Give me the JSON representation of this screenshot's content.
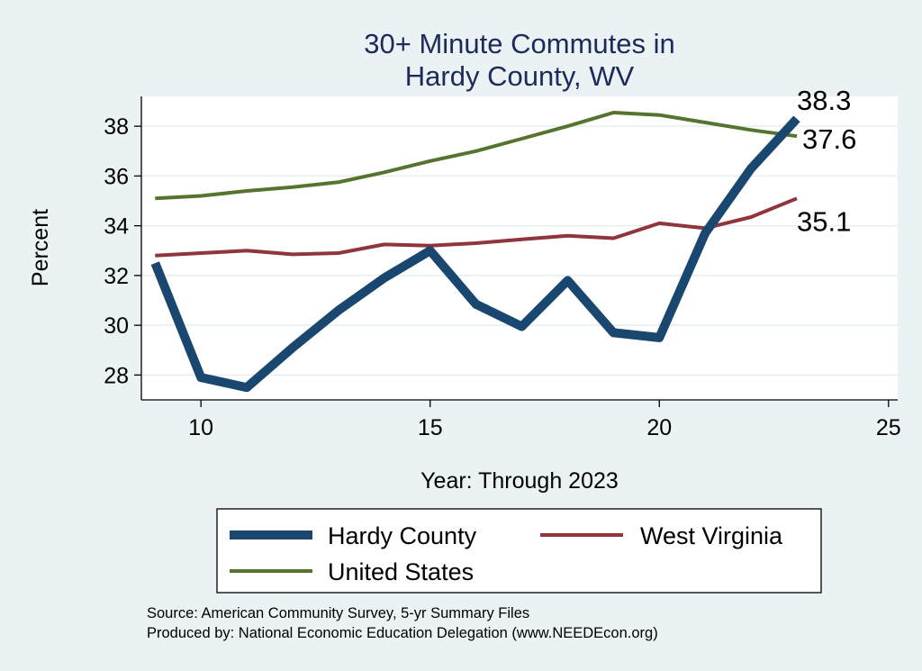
{
  "colors": {
    "background": "#eaf2f3",
    "plot_background": "#ffffff",
    "gridline": "#e6eef0",
    "title": "#1c2b5a"
  },
  "chart_data": {
    "type": "line",
    "title_lines": [
      "30+ Minute Commutes in",
      "Hardy County, WV"
    ],
    "xlabel": "Year: Through 2023",
    "ylabel": "Percent",
    "xlim": [
      8.7,
      25.2
    ],
    "ylim": [
      27.0,
      39.2
    ],
    "x_ticks": [
      10,
      15,
      20,
      25
    ],
    "x_tick_labels": [
      "10",
      "15",
      "20",
      "25"
    ],
    "y_ticks": [
      28,
      30,
      32,
      34,
      36,
      38
    ],
    "y_tick_labels": [
      "28",
      "30",
      "32",
      "34",
      "36",
      "38"
    ],
    "grid": true,
    "x": [
      9,
      10,
      11,
      12,
      13,
      14,
      15,
      16,
      17,
      18,
      19,
      20,
      21,
      22,
      23
    ],
    "series": [
      {
        "name": "Hardy County",
        "color": "#1a476f",
        "width": 10,
        "values": [
          32.5,
          27.9,
          27.5,
          29.1,
          30.6,
          31.9,
          33.0,
          30.85,
          29.95,
          31.8,
          29.7,
          29.5,
          33.7,
          36.3,
          38.3
        ],
        "end_label": "38.3"
      },
      {
        "name": "West Virginia",
        "color": "#90353b",
        "width": 4,
        "values": [
          32.8,
          32.9,
          33.0,
          32.85,
          32.9,
          33.25,
          33.2,
          33.3,
          33.45,
          33.6,
          33.5,
          34.1,
          33.9,
          34.35,
          35.1
        ],
        "end_label": "35.1"
      },
      {
        "name": "United States",
        "color": "#55752f",
        "width": 4,
        "values": [
          35.1,
          35.2,
          35.4,
          35.55,
          35.75,
          36.15,
          36.6,
          37.0,
          37.5,
          38.0,
          38.55,
          38.45,
          38.15,
          37.85,
          37.6
        ],
        "end_label": "37.6"
      }
    ],
    "legend": {
      "placement": "bottom",
      "entries": [
        "Hardy County",
        "West Virginia",
        "United States"
      ]
    }
  },
  "footer": {
    "source": "Source: American Community Survey, 5-yr Summary Files",
    "produced_by": "Produced by: National Economic Education Delegation (www.NEEDEcon.org)"
  }
}
